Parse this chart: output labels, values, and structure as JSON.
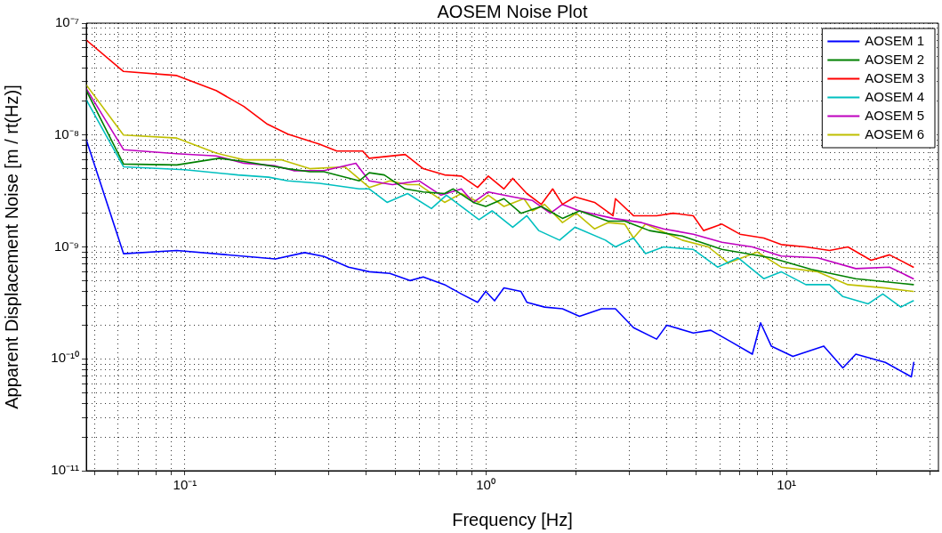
{
  "chart_data": {
    "type": "line",
    "title": "AOSEM Noise Plot",
    "xlabel": "Frequency [Hz]",
    "ylabel": "Apparent Displacement Noise [m / rt(Hz)]",
    "log": "xy",
    "grid": true,
    "legend": "top right",
    "line_style": "solid",
    "marker": "none",
    "xlim": [
      0.047,
      32
    ],
    "xticks": [
      {
        "value": 0.05,
        "label": null
      },
      {
        "value": 0.06,
        "label": null
      },
      {
        "value": 0.07,
        "label": null
      },
      {
        "value": 0.08,
        "label": null
      },
      {
        "value": 0.09,
        "label": null
      },
      {
        "value": 0.1,
        "label": "10⁻¹"
      },
      {
        "value": 0.2,
        "label": null
      },
      {
        "value": 0.3,
        "label": null
      },
      {
        "value": 0.4,
        "label": null
      },
      {
        "value": 0.5,
        "label": null
      },
      {
        "value": 0.6,
        "label": null
      },
      {
        "value": 0.7,
        "label": null
      },
      {
        "value": 0.8,
        "label": null
      },
      {
        "value": 0.9,
        "label": null
      },
      {
        "value": 1,
        "label": "10⁰"
      },
      {
        "value": 2,
        "label": null
      },
      {
        "value": 3,
        "label": null
      },
      {
        "value": 4,
        "label": null
      },
      {
        "value": 5,
        "label": null
      },
      {
        "value": 6,
        "label": null
      },
      {
        "value": 7,
        "label": null
      },
      {
        "value": 8,
        "label": null
      },
      {
        "value": 9,
        "label": null
      },
      {
        "value": 10,
        "label": "10¹"
      },
      {
        "value": 20,
        "label": null
      },
      {
        "value": 30,
        "label": null
      }
    ],
    "ylim": [
      1e-11,
      1e-07
    ],
    "yticks": [
      {
        "value": 1e-11,
        "label": "10⁻¹¹"
      },
      {
        "value": 2e-11,
        "label": null
      },
      {
        "value": 3e-11,
        "label": null
      },
      {
        "value": 4e-11,
        "label": null
      },
      {
        "value": 5e-11,
        "label": null
      },
      {
        "value": 6e-11,
        "label": null
      },
      {
        "value": 7e-11,
        "label": null
      },
      {
        "value": 8e-11,
        "label": null
      },
      {
        "value": 9e-11,
        "label": null
      },
      {
        "value": 1e-10,
        "label": "10⁻¹⁰"
      },
      {
        "value": 2e-10,
        "label": null
      },
      {
        "value": 3e-10,
        "label": null
      },
      {
        "value": 4e-10,
        "label": null
      },
      {
        "value": 5e-10,
        "label": null
      },
      {
        "value": 6e-10,
        "label": null
      },
      {
        "value": 7e-10,
        "label": null
      },
      {
        "value": 8e-10,
        "label": null
      },
      {
        "value": 9e-10,
        "label": null
      },
      {
        "value": 1e-09,
        "label": "10⁻⁹"
      },
      {
        "value": 2e-09,
        "label": null
      },
      {
        "value": 3e-09,
        "label": null
      },
      {
        "value": 4e-09,
        "label": null
      },
      {
        "value": 5e-09,
        "label": null
      },
      {
        "value": 6e-09,
        "label": null
      },
      {
        "value": 7e-09,
        "label": null
      },
      {
        "value": 8e-09,
        "label": null
      },
      {
        "value": 9e-09,
        "label": null
      },
      {
        "value": 1e-08,
        "label": "10⁻⁸"
      },
      {
        "value": 2e-08,
        "label": null
      },
      {
        "value": 3e-08,
        "label": null
      },
      {
        "value": 4e-08,
        "label": null
      },
      {
        "value": 5e-08,
        "label": null
      },
      {
        "value": 6e-08,
        "label": null
      },
      {
        "value": 7e-08,
        "label": null
      },
      {
        "value": 8e-08,
        "label": null
      },
      {
        "value": 9e-08,
        "label": null
      },
      {
        "value": 1e-07,
        "label": "10⁻⁷"
      }
    ],
    "series": [
      {
        "name": "AOSEM 1",
        "color": "#0000ff",
        "x": [
          0.047,
          0.0625,
          0.094,
          0.2,
          0.25,
          0.29,
          0.35,
          0.41,
          0.48,
          0.56,
          0.62,
          0.73,
          0.83,
          0.94,
          1.0,
          1.07,
          1.15,
          1.31,
          1.37,
          1.57,
          1.8,
          2.05,
          2.43,
          2.7,
          3.1,
          3.7,
          4.0,
          4.9,
          5.6,
          6.6,
          7.7,
          8.2,
          8.9,
          10.5,
          13.3,
          15.4,
          17,
          21.3,
          26,
          26.5
        ],
        "values": [
          9.1e-09,
          8.7e-10,
          9.3e-10,
          7.8e-10,
          8.9e-10,
          8.2e-10,
          6.6e-10,
          6e-10,
          5.8e-10,
          5e-10,
          5.4e-10,
          4.6e-10,
          3.8e-10,
          3.2e-10,
          4e-10,
          3.3e-10,
          4.3e-10,
          4e-10,
          3.2e-10,
          2.9e-10,
          2.8e-10,
          2.4e-10,
          2.8e-10,
          2.8e-10,
          1.9e-10,
          1.5e-10,
          2e-10,
          1.7e-10,
          1.8e-10,
          1.4e-10,
          1.1e-10,
          2.1e-10,
          1.3e-10,
          1.05e-10,
          1.3e-10,
          8.3e-11,
          1.1e-10,
          9.3e-11,
          6.9e-11,
          9.3e-11
        ]
      },
      {
        "name": "AOSEM 2",
        "color": "#008000",
        "x": [
          0.047,
          0.0625,
          0.094,
          0.13,
          0.157,
          0.22,
          0.26,
          0.29,
          0.38,
          0.41,
          0.46,
          0.54,
          0.62,
          0.73,
          0.78,
          0.91,
          1.0,
          1.15,
          1.31,
          1.53,
          1.8,
          2.05,
          2.55,
          2.9,
          3.5,
          4.5,
          6.1,
          8.9,
          12.1,
          17,
          26.4
        ],
        "values": [
          2.5e-08,
          5.5e-09,
          5.4e-09,
          6.2e-09,
          5.8e-09,
          5e-09,
          4.7e-09,
          4.7e-09,
          3.9e-09,
          4.6e-09,
          4.4e-09,
          3.3e-09,
          3.1e-09,
          3e-09,
          3.3e-09,
          2.5e-09,
          2.3e-09,
          2.7e-09,
          2e-09,
          2.3e-09,
          1.8e-09,
          2.1e-09,
          1.7e-09,
          1.7e-09,
          1.4e-09,
          1.25e-09,
          9.5e-10,
          8e-10,
          6.3e-10,
          5.2e-10,
          4.6e-10
        ]
      },
      {
        "name": "AOSEM 3",
        "color": "#ff0000",
        "x": [
          0.047,
          0.0625,
          0.094,
          0.127,
          0.157,
          0.188,
          0.22,
          0.28,
          0.32,
          0.39,
          0.41,
          0.54,
          0.62,
          0.73,
          0.83,
          0.94,
          1.02,
          1.15,
          1.23,
          1.37,
          1.53,
          1.67,
          1.8,
          1.98,
          2.3,
          2.65,
          2.7,
          3.1,
          3.7,
          4.2,
          4.9,
          5.3,
          6.1,
          7.0,
          8.4,
          9.6,
          11.6,
          13.9,
          16,
          19.1,
          22,
          26.4
        ],
        "values": [
          7.06e-08,
          3.7e-08,
          3.4e-08,
          2.5e-08,
          1.8e-08,
          1.25e-08,
          1.02e-08,
          8.3e-09,
          7.2e-09,
          7.2e-09,
          6.2e-09,
          6.7e-09,
          5e-09,
          4.4e-09,
          4.3e-09,
          3.4e-09,
          4.3e-09,
          3.3e-09,
          4.1e-09,
          3e-09,
          2.4e-09,
          3.3e-09,
          2.4e-09,
          2.8e-09,
          2.5e-09,
          1.9e-09,
          2.7e-09,
          1.9e-09,
          1.9e-09,
          2e-09,
          1.9e-09,
          1.4e-09,
          1.6e-09,
          1.3e-09,
          1.2e-09,
          1.05e-09,
          1e-09,
          9.3e-10,
          1e-09,
          7.6e-10,
          8.5e-10,
          6.6e-10
        ]
      },
      {
        "name": "AOSEM 4",
        "color": "#00bfbf",
        "x": [
          0.047,
          0.0625,
          0.1,
          0.15,
          0.19,
          0.22,
          0.28,
          0.38,
          0.41,
          0.47,
          0.55,
          0.66,
          0.74,
          0.95,
          1.05,
          1.23,
          1.37,
          1.5,
          1.76,
          1.98,
          2.5,
          2.7,
          3.1,
          3.4,
          3.9,
          4.9,
          5.9,
          6.9,
          8.4,
          9.6,
          11.6,
          13.9,
          15.4,
          18.7,
          20.9,
          24,
          26.4
        ],
        "values": [
          2.07e-08,
          5.2e-09,
          4.9e-09,
          4.4e-09,
          4.2e-09,
          3.9e-09,
          3.7e-09,
          3.3e-09,
          3.3e-09,
          2.5e-09,
          3e-09,
          2.2e-09,
          2.9e-09,
          1.75e-09,
          2.1e-09,
          1.5e-09,
          1.9e-09,
          1.4e-09,
          1.15e-09,
          1.5e-09,
          1.15e-09,
          1e-09,
          1.2e-09,
          8.7e-10,
          1e-09,
          9.5e-10,
          6.6e-10,
          8e-10,
          5.2e-10,
          6e-10,
          4.6e-10,
          4.6e-10,
          3.6e-10,
          3.1e-10,
          3.8e-10,
          2.9e-10,
          3.3e-10
        ]
      },
      {
        "name": "AOSEM 5",
        "color": "#bf00bf",
        "x": [
          0.047,
          0.0625,
          0.094,
          0.127,
          0.157,
          0.2,
          0.23,
          0.29,
          0.37,
          0.41,
          0.49,
          0.6,
          0.71,
          0.83,
          0.91,
          1.02,
          1.23,
          1.43,
          1.64,
          1.8,
          2.05,
          2.65,
          3.3,
          3.9,
          4.9,
          6.1,
          7.7,
          9.6,
          12.7,
          17,
          22,
          26.4
        ],
        "values": [
          2.6e-08,
          7.4e-09,
          6.8e-09,
          6.5e-09,
          5.6e-09,
          5.3e-09,
          4.8e-09,
          4.8e-09,
          5.6e-09,
          3.9e-09,
          3.6e-09,
          3.9e-09,
          2.9e-09,
          3.3e-09,
          2.5e-09,
          3.1e-09,
          2.8e-09,
          2.6e-09,
          2e-09,
          2.4e-09,
          2.1e-09,
          1.8e-09,
          1.65e-09,
          1.45e-09,
          1.3e-09,
          1.1e-09,
          1e-09,
          8.3e-10,
          8e-10,
          6.4e-10,
          6.6e-10,
          5.2e-10
        ]
      },
      {
        "name": "AOSEM 6",
        "color": "#bfbf00",
        "x": [
          0.047,
          0.0625,
          0.094,
          0.127,
          0.157,
          0.21,
          0.26,
          0.34,
          0.41,
          0.48,
          0.55,
          0.6,
          0.73,
          0.83,
          0.95,
          1.02,
          1.15,
          1.34,
          1.43,
          1.57,
          1.8,
          2.0,
          2.3,
          2.55,
          2.9,
          3.1,
          3.4,
          4.5,
          5.5,
          6.4,
          8.0,
          9.6,
          12.7,
          16,
          21.3,
          26.4
        ],
        "values": [
          2.8e-08,
          1e-08,
          9.4e-09,
          6.9e-09,
          6e-09,
          6e-09,
          5e-09,
          5.2e-09,
          3.4e-09,
          3.9e-09,
          3.6e-09,
          3.6e-09,
          2.5e-09,
          3e-09,
          2.5e-09,
          2.9e-09,
          2.3e-09,
          2.7e-09,
          2.1e-09,
          2.4e-09,
          1.65e-09,
          2e-09,
          1.45e-09,
          1.65e-09,
          1.6e-09,
          1.2e-09,
          1.6e-09,
          1.15e-09,
          1e-09,
          7.2e-10,
          9e-10,
          6.6e-10,
          6e-10,
          4.6e-10,
          4.3e-10,
          4e-10
        ]
      }
    ]
  }
}
